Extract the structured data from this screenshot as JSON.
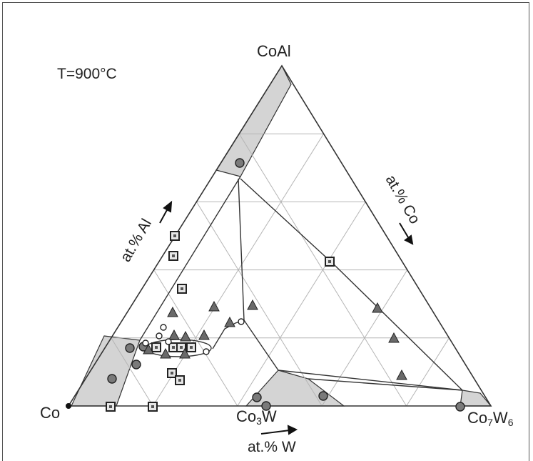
{
  "temperature": "T=900°C",
  "corners": {
    "top": "CoAl",
    "bottom_left": "Co",
    "bottom_middle": {
      "main": "Co",
      "sub": "3",
      "tail": "W"
    },
    "bottom_right": {
      "main": "Co",
      "sub1": "7",
      "mid": "W",
      "sub2": "6"
    }
  },
  "axes": {
    "al": "at.% Al",
    "co": "at.% Co",
    "w": "at.% W"
  },
  "colors": {
    "phase_fill": "#d4d4d4",
    "line": "#333333",
    "grid": "#b5b5b5",
    "marker_fill": "#7a7a7a"
  },
  "legend_symbols": [
    "filled-circle",
    "square-with-dot",
    "filled-triangle",
    "open-circle"
  ]
}
